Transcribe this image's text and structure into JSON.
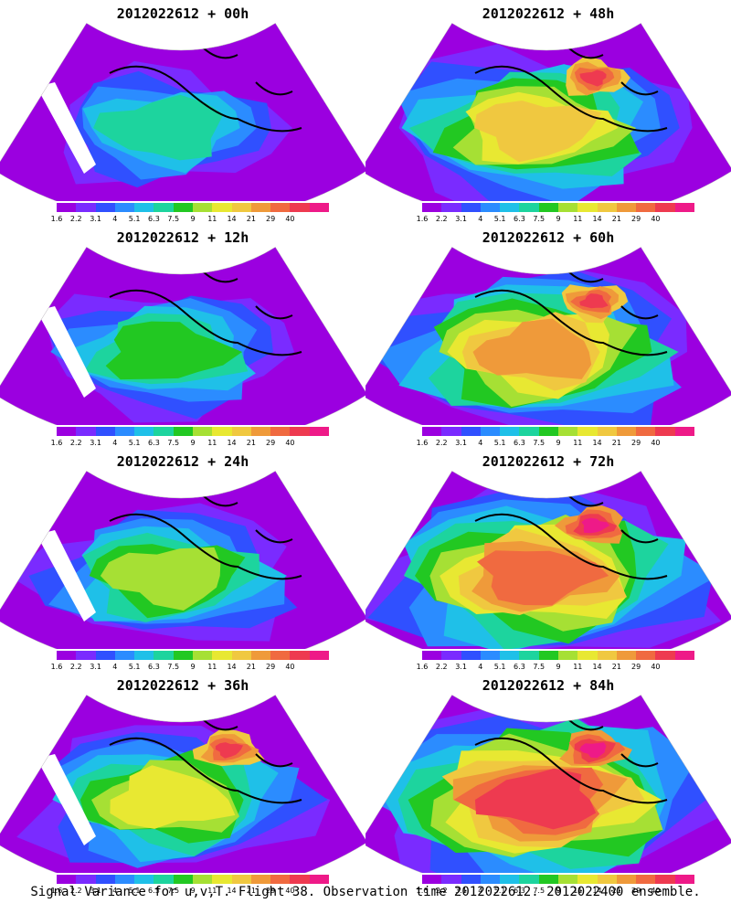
{
  "chart_data": {
    "type": "heatmap",
    "panels": [
      {
        "title": "2012022612 + 00h",
        "hour": 0
      },
      {
        "title": "2012022612 + 48h",
        "hour": 48
      },
      {
        "title": "2012022612 + 12h",
        "hour": 12
      },
      {
        "title": "2012022612 + 60h",
        "hour": 60
      },
      {
        "title": "2012022612 + 24h",
        "hour": 24
      },
      {
        "title": "2012022612 + 72h",
        "hour": 72
      },
      {
        "title": "2012022612 + 36h",
        "hour": 36
      },
      {
        "title": "2012022612 + 84h",
        "hour": 84
      }
    ],
    "colorbar": {
      "labels": [
        "1.6",
        "2.2",
        "3.1",
        "4",
        "5.1",
        "6.3",
        "7.5",
        "9",
        "11",
        "14",
        "21",
        "29",
        "40"
      ],
      "colors": [
        "#9b00e0",
        "#7a2bff",
        "#3050ff",
        "#2b8cff",
        "#1fc0e8",
        "#1dd49e",
        "#22c822",
        "#a6e034",
        "#e8e832",
        "#f0c840",
        "#ef9a3a",
        "#f06a40",
        "#ee3a50",
        "#ee1a88"
      ]
    }
  },
  "footer": "Signal Variance for u,v,T. Flight 38. Observation time 2012022612. 2012022400 ensemble."
}
